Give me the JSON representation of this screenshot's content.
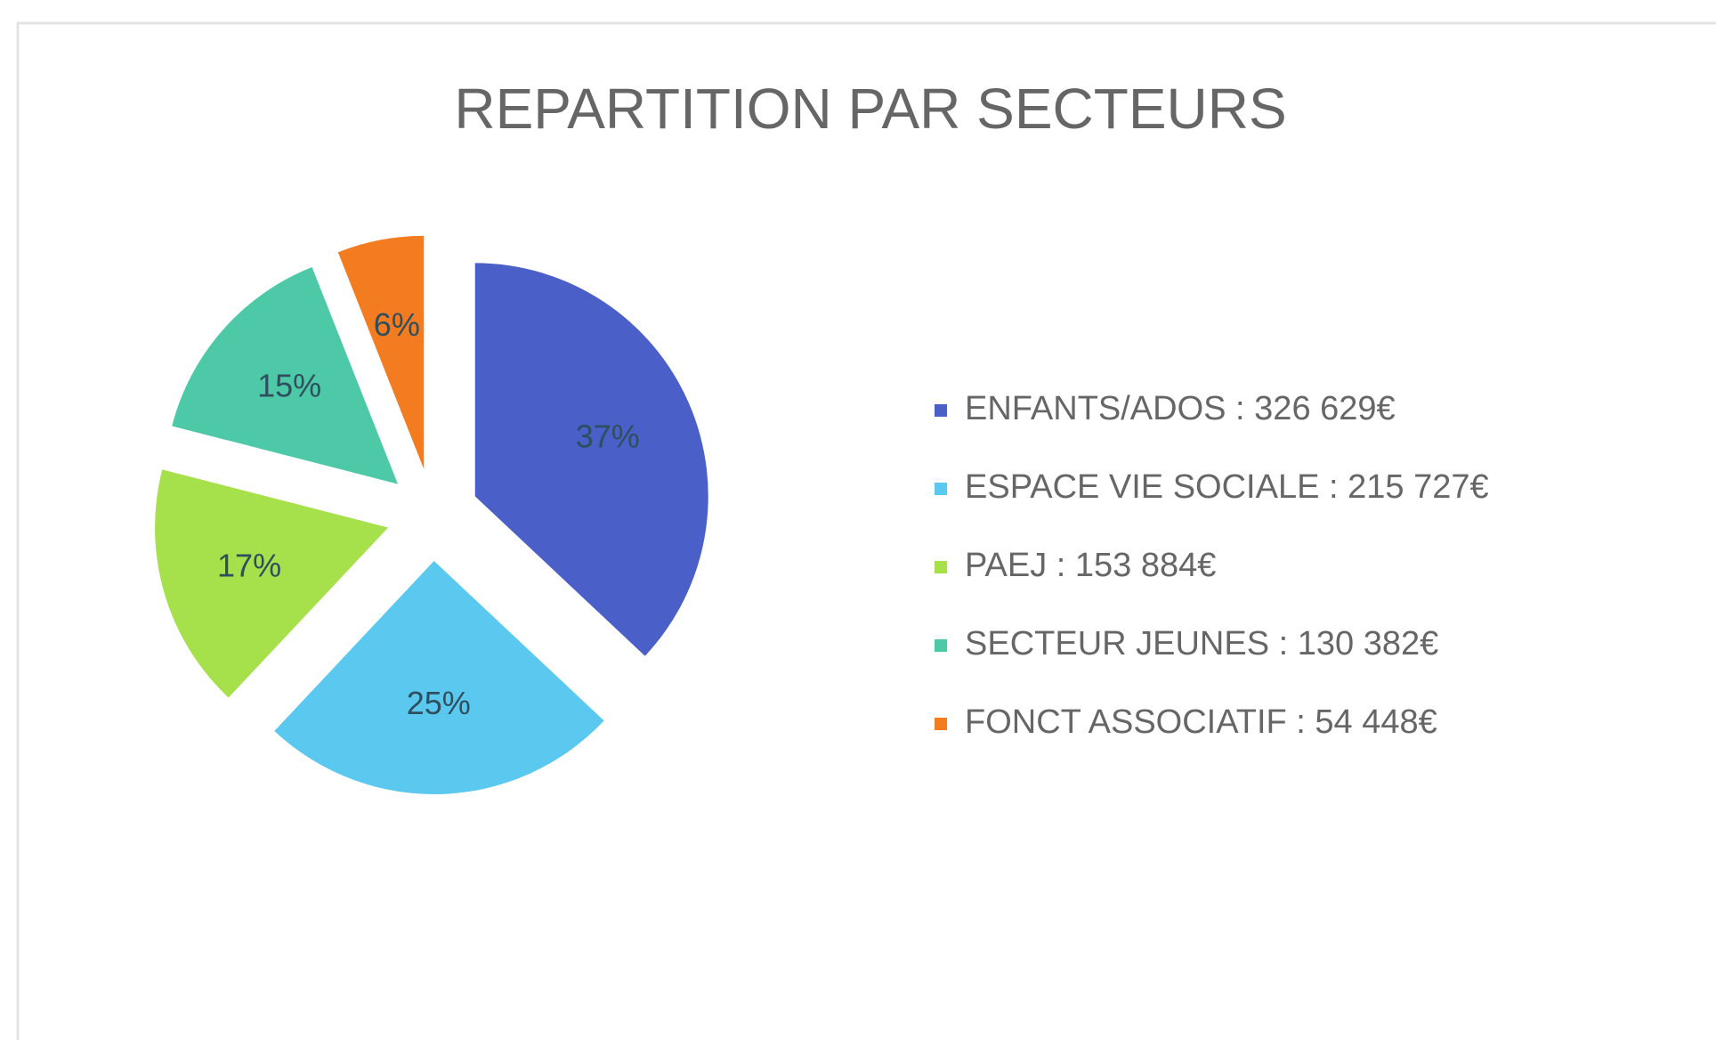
{
  "chart_data": {
    "type": "pie",
    "title": "REPARTITION PAR SECTEURS",
    "categories": [
      "ENFANTS/ADOS : 326 629€",
      "ESPACE VIE SOCIALE : 215 727€",
      "PAEJ : 153 884€",
      "SECTEUR JEUNES : 130 382€",
      "FONCT ASSOCIATIF : 54 448€"
    ],
    "values": [
      37,
      25,
      17,
      15,
      6
    ],
    "value_labels": [
      "37%",
      "25%",
      "17%",
      "15%",
      "6%"
    ],
    "colors": [
      "#4a5fc8",
      "#5bc8ef",
      "#a6e04a",
      "#4ec9a8",
      "#f47c20"
    ],
    "legend": "right"
  }
}
